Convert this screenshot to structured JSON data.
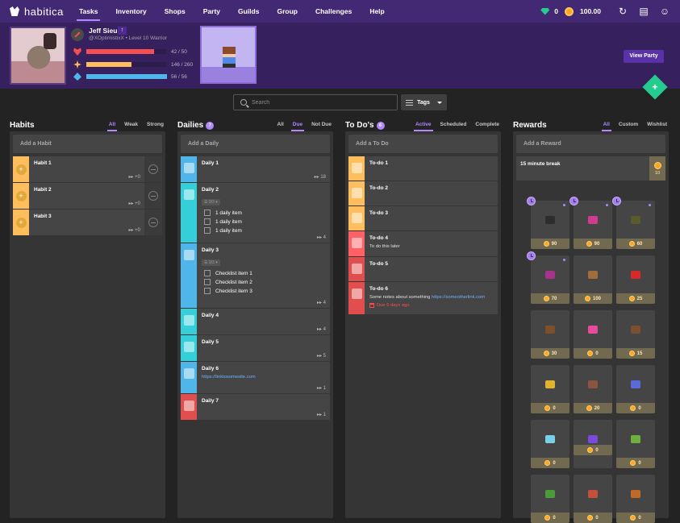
{
  "nav": {
    "logo": "habitica",
    "links": [
      "Tasks",
      "Inventory",
      "Shops",
      "Party",
      "Guilds",
      "Group",
      "Challenges",
      "Help"
    ],
    "active": "Tasks",
    "gems": "0",
    "gold": "100.00",
    "icons": [
      "sync-icon",
      "notifications-icon",
      "user-icon"
    ]
  },
  "user": {
    "name": "Jeff Sieu",
    "handle_line": "@XOptimistixX • Level 10 Warrior",
    "class_icon": "warrior-sword-icon",
    "hp": {
      "value": 42,
      "max": 50,
      "label": "42 / 50",
      "color": "#f74e52"
    },
    "xp": {
      "value": 146,
      "max": 260,
      "label": "146 / 260",
      "color": "#ffbe5d"
    },
    "mp": {
      "value": 56,
      "max": 56,
      "label": "56 / 56",
      "color": "#50b5e9"
    }
  },
  "party": {
    "view_label": "View Party"
  },
  "fab_label": "+",
  "toolbar": {
    "search_placeholder": "Search",
    "tags_label": "Tags"
  },
  "habits": {
    "title": "Habits",
    "filters": [
      "All",
      "Weak",
      "Strong"
    ],
    "active_filter": "All",
    "add_label": "Add a Habit",
    "items": [
      {
        "title": "Habit 1",
        "streak": "+0"
      },
      {
        "title": "Habit 2",
        "streak": "+0"
      },
      {
        "title": "Habit 3",
        "streak": "+0"
      }
    ]
  },
  "dailies": {
    "title": "Dailies",
    "count": "7",
    "filters": [
      "All",
      "Due",
      "Not Due"
    ],
    "active_filter": "Due",
    "add_label": "Add a Daily",
    "items": [
      {
        "title": "Daily 1",
        "streak": "18",
        "color": "#50b5e9"
      },
      {
        "title": "Daily 2",
        "streak": "4",
        "color": "#34cfd8",
        "checklist_count": "0/3",
        "checklist": [
          "1 daily item",
          "1 daily item",
          "1 daily item"
        ]
      },
      {
        "title": "Daily 3",
        "streak": "4",
        "color": "#50b5e9",
        "checklist_count": "0/3",
        "checklist": [
          "Checklist item 1",
          "Checklist item 2",
          "Checklist item 3"
        ]
      },
      {
        "title": "Daily 4",
        "streak": "4",
        "color": "#34cfd8"
      },
      {
        "title": "Daily 5",
        "streak": "5",
        "color": "#34cfd8"
      },
      {
        "title": "Daily 6",
        "streak": "1",
        "color": "#50b5e9",
        "notes_link": "https://linktosomesite.com"
      },
      {
        "title": "Daily 7",
        "streak": "1",
        "color": "#e14e4e"
      }
    ]
  },
  "todos": {
    "title": "To Do's",
    "count": "6",
    "filters": [
      "Active",
      "Scheduled",
      "Complete"
    ],
    "active_filter": "Active",
    "add_label": "Add a To Do",
    "items": [
      {
        "title": "To-do 1",
        "color": "#ffbe5d"
      },
      {
        "title": "To-do 2",
        "color": "#ffbe5d"
      },
      {
        "title": "To-do 3",
        "color": "#ffbe5d"
      },
      {
        "title": "To-do 4",
        "notes": "To do this later",
        "color": "#ff6165"
      },
      {
        "title": "To-do 5",
        "color": "#e14e4e"
      },
      {
        "title": "To-do 6",
        "notes": "Some notes about something",
        "notes_link": "https://someotherlink.com",
        "due": "Due 6 days ago",
        "color": "#e14e4e"
      }
    ]
  },
  "rewards": {
    "title": "Rewards",
    "filters": [
      "All",
      "Custom",
      "Wishlist"
    ],
    "active_filter": "All",
    "add_label": "Add a Reward",
    "custom": [
      {
        "title": "15 minute break",
        "cost": "10"
      }
    ],
    "shop_items": [
      {
        "name": "whip",
        "price": "90",
        "limited": true,
        "color": "#2d2d2d"
      },
      {
        "name": "serpent-armor",
        "price": "90",
        "limited": true,
        "color": "#d13b8f"
      },
      {
        "name": "helm",
        "price": "60",
        "limited": true,
        "color": "#5b5a2c"
      },
      {
        "name": "hatching-potion",
        "price": "70",
        "limited": true,
        "color": "#a4338a"
      },
      {
        "name": "treasure-chest",
        "price": "100",
        "limited": false,
        "color": "#a06e3a"
      },
      {
        "name": "health-potion",
        "price": "25",
        "limited": false,
        "color": "#d62a2a"
      },
      {
        "name": "spider-pet",
        "price": "30",
        "limited": false,
        "color": "#7a5128"
      },
      {
        "name": "rainbow-wings",
        "price": "0",
        "limited": false,
        "color": "#e84a9b"
      },
      {
        "name": "viking-helm",
        "price": "15",
        "limited": false,
        "color": "#7a5030"
      },
      {
        "name": "party-hat-rainbow",
        "price": "0",
        "limited": false,
        "color": "#e0b22e"
      },
      {
        "name": "brown-egg",
        "price": "20",
        "limited": false,
        "color": "#8a5440"
      },
      {
        "name": "party-hat-blue",
        "price": "0",
        "limited": false,
        "color": "#5a6ad8"
      },
      {
        "name": "ice-wings",
        "price": "0",
        "limited": false,
        "color": "#7ad0e8"
      },
      {
        "name": "purple-cat-ears",
        "price": "0",
        "limited": false,
        "color": "#7a4ad8"
      },
      {
        "name": "party-hat-green",
        "price": "0",
        "limited": false,
        "color": "#6fb03c"
      },
      {
        "name": "green-wings",
        "price": "0",
        "limited": false,
        "color": "#4a9b3a"
      },
      {
        "name": "meat-dish",
        "price": "0",
        "limited": false,
        "color": "#c4503a"
      },
      {
        "name": "cookie",
        "price": "0",
        "limited": false,
        "color": "#c06a2a"
      }
    ]
  }
}
